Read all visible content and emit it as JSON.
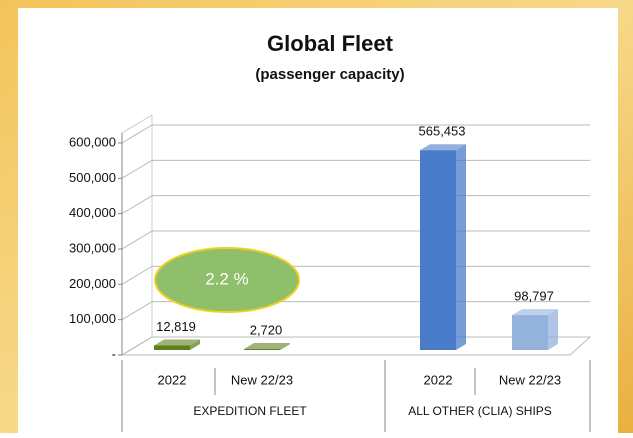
{
  "chart_data": {
    "type": "bar3d",
    "title": "Global Fleet",
    "subtitle": "(passenger capacity)",
    "groups": [
      {
        "name": "EXPEDITION FLEET",
        "categories": [
          "2022",
          "New 22/23"
        ],
        "values": [
          12819,
          2720
        ],
        "value_labels": [
          "12,819",
          "2,720"
        ],
        "colors": [
          "#5f7f1e",
          "#5f7f1e"
        ]
      },
      {
        "name": "ALL OTHER (CLIA) SHIPS",
        "categories": [
          "2022",
          "New 22/23"
        ],
        "values": [
          565453,
          98797
        ],
        "value_labels": [
          "565,453",
          "98,797"
        ],
        "colors": [
          "#4a7bc8",
          "#93b2dc"
        ]
      }
    ],
    "ylim": [
      0,
      600000
    ],
    "yticks": [
      {
        "value": 0,
        "label": "-"
      },
      {
        "value": 100000,
        "label": "100,000"
      },
      {
        "value": 200000,
        "label": "200,000"
      },
      {
        "value": 300000,
        "label": "300,000"
      },
      {
        "value": 400000,
        "label": "400,000"
      },
      {
        "value": 500000,
        "label": "500,000"
      },
      {
        "value": 600000,
        "label": "600,000"
      }
    ],
    "grid": true,
    "annotation": "2.2 %"
  }
}
